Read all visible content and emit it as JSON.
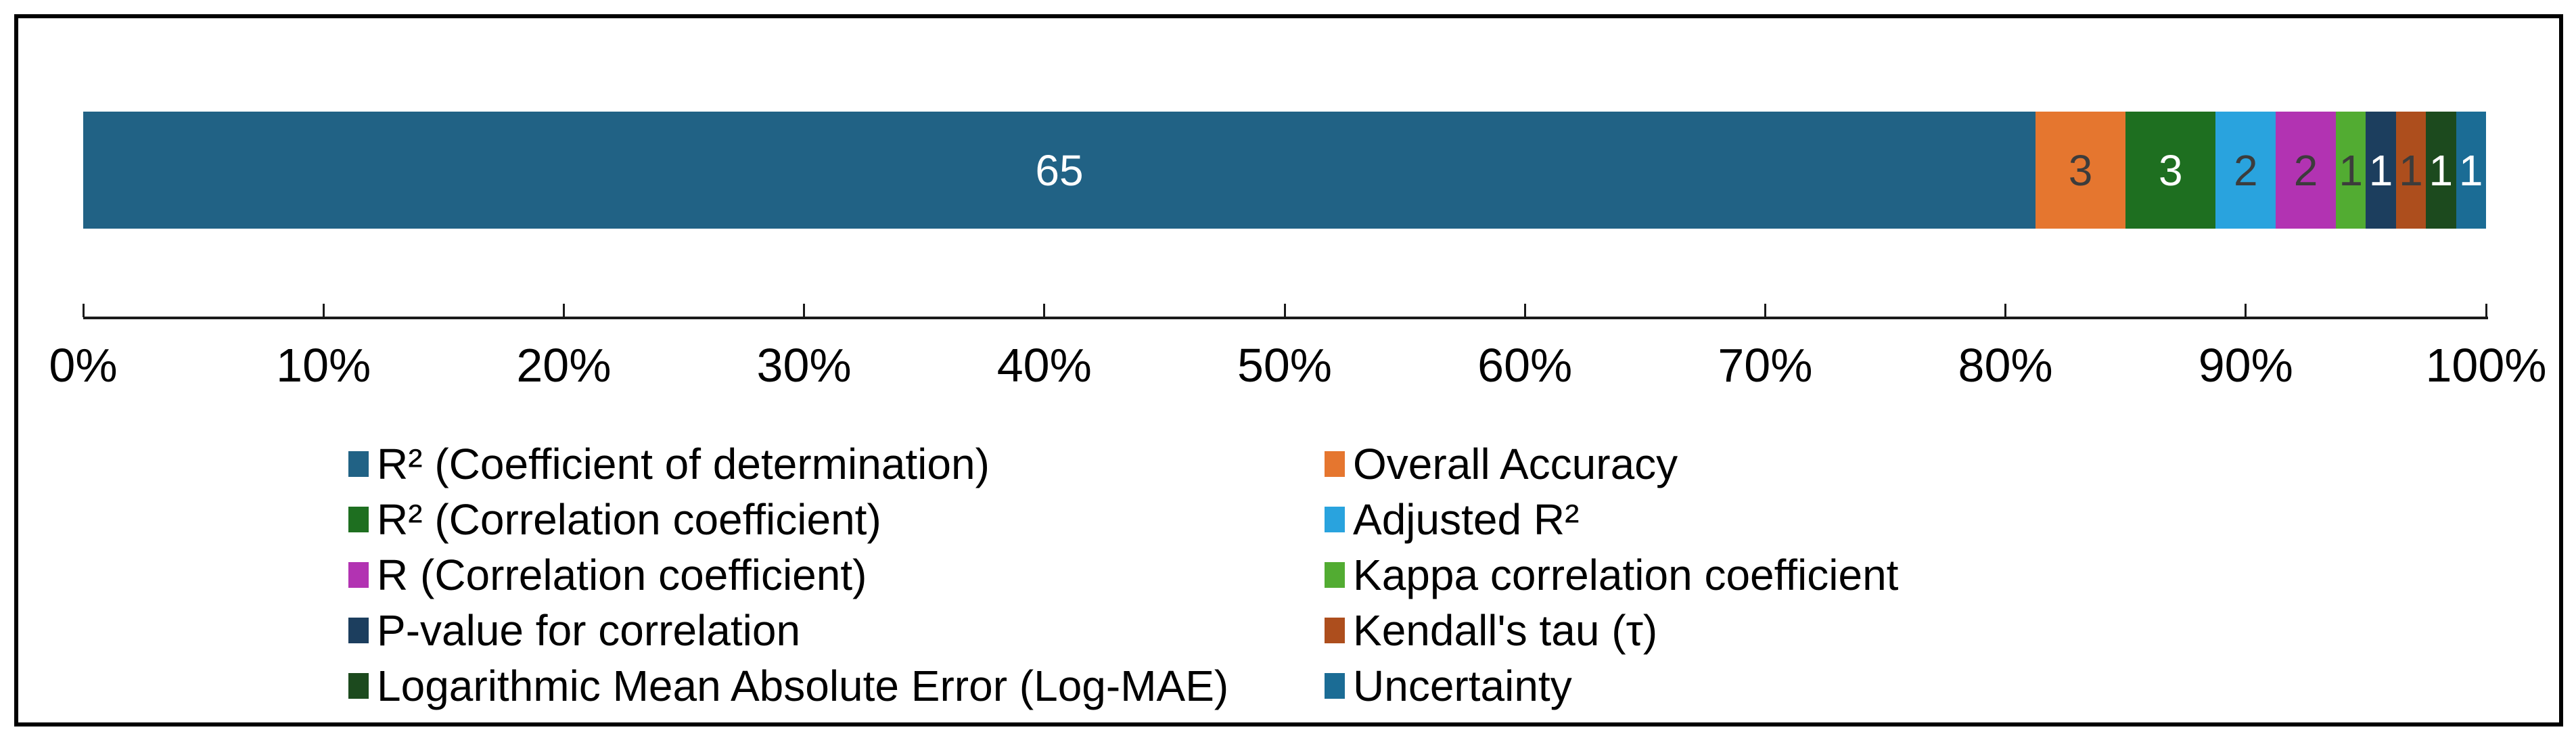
{
  "chart_data": {
    "type": "bar",
    "variant": "horizontal-stacked-percent",
    "title": "",
    "xlabel": "",
    "ylabel": "",
    "total": 80,
    "grid": false,
    "series": [
      {
        "name": "R² (Coefficient of determination)",
        "value": 65,
        "color": "#216285",
        "label_color": "#ffffff"
      },
      {
        "name": "Overall Accuracy",
        "value": 3,
        "color": "#E5762F",
        "label_color": "#3c3c3c"
      },
      {
        "name": "R² (Correlation coefficient)",
        "value": 3,
        "color": "#1E6F20",
        "label_color": "#ffffff"
      },
      {
        "name": "Adjusted R²",
        "value": 2,
        "color": "#29A3DE",
        "label_color": "#3c3c3c"
      },
      {
        "name": "R (Correlation coefficient)",
        "value": 2,
        "color": "#B233B2",
        "label_color": "#3c3c3c"
      },
      {
        "name": "Kappa correlation coefficient",
        "value": 1,
        "color": "#52AC32",
        "label_color": "#3c3c3c"
      },
      {
        "name": "P-value for correlation",
        "value": 1,
        "color": "#1C3E5E",
        "label_color": "#ffffff"
      },
      {
        "name": "Kendall's tau (τ)",
        "value": 1,
        "color": "#AD4E1D",
        "label_color": "#3c3c3c"
      },
      {
        "name": "Logarithmic Mean Absolute Error (Log-MAE)",
        "value": 1,
        "color": "#1C4A1E",
        "label_color": "#ffffff"
      },
      {
        "name": "Uncertainty",
        "value": 1,
        "color": "#1B6C95",
        "label_color": "#ffffff"
      }
    ],
    "x_axis": {
      "min": 0,
      "max": 100,
      "tick_step": 10,
      "tick_labels": [
        "0%",
        "10%",
        "20%",
        "30%",
        "40%",
        "50%",
        "60%",
        "70%",
        "80%",
        "90%",
        "100%"
      ]
    },
    "legend": {
      "position": "bottom",
      "columns": 2,
      "order": "row-major"
    }
  }
}
